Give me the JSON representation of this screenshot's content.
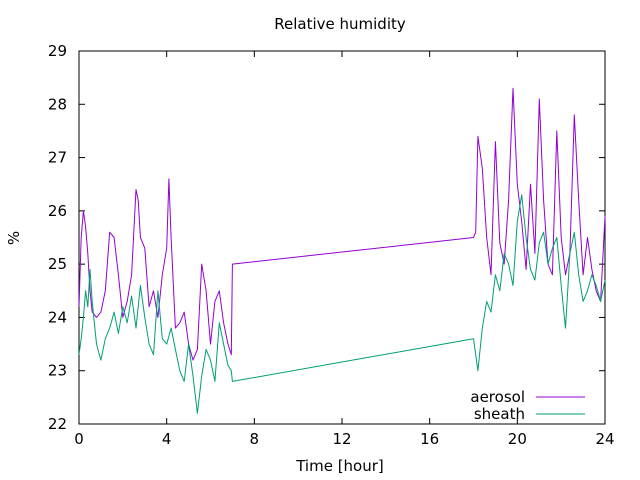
{
  "chart_data": {
    "type": "line",
    "title": "Relative humidity",
    "xlabel": "Time [hour]",
    "ylabel": "%",
    "xlim": [
      0,
      24
    ],
    "ylim": [
      22,
      29
    ],
    "xticks": [
      0,
      4,
      8,
      12,
      16,
      20,
      24
    ],
    "yticks": [
      22,
      23,
      24,
      25,
      26,
      27,
      28,
      29
    ],
    "grid": false,
    "legend_position": "bottom-right",
    "series": [
      {
        "name": "aerosol",
        "color": "#9400d3",
        "x": [
          0,
          0.1,
          0.2,
          0.3,
          0.4,
          0.5,
          0.6,
          0.8,
          1.0,
          1.2,
          1.4,
          1.6,
          1.8,
          2.0,
          2.2,
          2.4,
          2.6,
          2.7,
          2.8,
          3.0,
          3.2,
          3.4,
          3.6,
          3.8,
          4.0,
          4.1,
          4.2,
          4.4,
          4.6,
          4.8,
          5.0,
          5.2,
          5.4,
          5.6,
          5.8,
          6.0,
          6.2,
          6.4,
          6.6,
          6.8,
          6.95,
          7.0,
          18.0,
          18.1,
          18.2,
          18.4,
          18.6,
          18.8,
          19.0,
          19.2,
          19.4,
          19.6,
          19.8,
          20.0,
          20.2,
          20.4,
          20.6,
          20.8,
          21.0,
          21.2,
          21.4,
          21.6,
          21.8,
          22.0,
          22.2,
          22.4,
          22.6,
          22.8,
          23.0,
          23.2,
          23.4,
          23.6,
          23.8,
          24.0
        ],
        "values": [
          24.2,
          25.5,
          26.0,
          25.7,
          25.2,
          24.5,
          24.1,
          24.0,
          24.1,
          24.5,
          25.6,
          25.5,
          24.8,
          24.0,
          24.3,
          24.8,
          26.4,
          26.2,
          25.5,
          25.3,
          24.2,
          24.5,
          24.0,
          24.8,
          25.3,
          26.6,
          25.5,
          23.8,
          23.9,
          24.1,
          23.5,
          23.2,
          23.4,
          25.0,
          24.5,
          23.5,
          24.3,
          24.5,
          23.9,
          23.5,
          23.3,
          25.0,
          25.5,
          25.6,
          27.4,
          26.8,
          25.5,
          24.8,
          27.3,
          25.4,
          25.0,
          26.2,
          28.3,
          26.5,
          25.8,
          24.9,
          26.5,
          25.2,
          28.1,
          26.2,
          25.0,
          24.8,
          27.5,
          25.5,
          24.8,
          25.2,
          27.8,
          26.2,
          24.8,
          25.5,
          24.9,
          24.5,
          24.3,
          25.9
        ]
      },
      {
        "name": "sheath",
        "color": "#009e73",
        "x": [
          0,
          0.1,
          0.2,
          0.3,
          0.4,
          0.5,
          0.6,
          0.8,
          1.0,
          1.2,
          1.4,
          1.6,
          1.8,
          2.0,
          2.2,
          2.4,
          2.6,
          2.8,
          3.0,
          3.2,
          3.4,
          3.6,
          3.8,
          4.0,
          4.2,
          4.4,
          4.6,
          4.8,
          5.0,
          5.2,
          5.4,
          5.6,
          5.8,
          6.0,
          6.2,
          6.4,
          6.6,
          6.8,
          6.95,
          7.0,
          18.0,
          18.1,
          18.2,
          18.4,
          18.6,
          18.8,
          19.0,
          19.2,
          19.4,
          19.6,
          19.8,
          20.0,
          20.2,
          20.4,
          20.6,
          20.8,
          21.0,
          21.2,
          21.4,
          21.6,
          21.8,
          22.0,
          22.2,
          22.4,
          22.6,
          22.8,
          23.0,
          23.2,
          23.4,
          23.6,
          23.8,
          24.0
        ],
        "values": [
          23.3,
          23.6,
          24.0,
          24.5,
          24.2,
          24.9,
          24.3,
          23.5,
          23.2,
          23.6,
          23.8,
          24.1,
          23.7,
          24.2,
          23.9,
          24.4,
          23.8,
          24.6,
          24.0,
          23.5,
          23.3,
          24.5,
          23.6,
          23.5,
          23.8,
          23.4,
          23.0,
          22.8,
          23.5,
          22.9,
          22.2,
          22.9,
          23.4,
          23.2,
          22.8,
          23.9,
          23.5,
          23.1,
          23.0,
          22.8,
          23.6,
          23.3,
          23.0,
          23.8,
          24.3,
          24.1,
          24.8,
          24.5,
          25.2,
          25.0,
          24.6,
          25.8,
          26.3,
          25.5,
          24.9,
          24.7,
          25.4,
          25.6,
          25.0,
          25.3,
          25.5,
          24.6,
          23.8,
          25.2,
          25.6,
          24.8,
          24.3,
          24.5,
          24.8,
          24.6,
          24.3,
          24.7
        ]
      }
    ]
  }
}
